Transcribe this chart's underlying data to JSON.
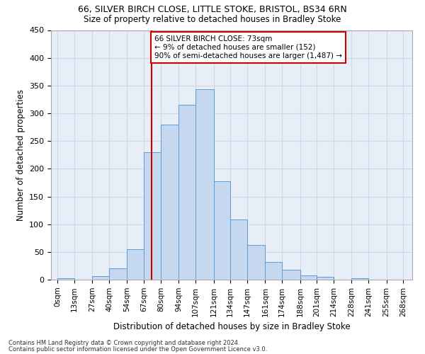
{
  "title1": "66, SILVER BIRCH CLOSE, LITTLE STOKE, BRISTOL, BS34 6RN",
  "title2": "Size of property relative to detached houses in Bradley Stoke",
  "xlabel": "Distribution of detached houses by size in Bradley Stoke",
  "ylabel": "Number of detached properties",
  "bar_heights": [
    3,
    0,
    7,
    21,
    55,
    230,
    280,
    315,
    343,
    178,
    108,
    63,
    32,
    18,
    8,
    5,
    0,
    3
  ],
  "bar_color": "#c5d8f0",
  "bar_edge_color": "#5b9bd5",
  "grid_color": "#d0d8e8",
  "background_color": "#e8eef8",
  "property_size": 73,
  "annotation_text": "66 SILVER BIRCH CLOSE: 73sqm\n← 9% of detached houses are smaller (152)\n90% of semi-detached houses are larger (1,487) →",
  "annotation_box_color": "#ffffff",
  "annotation_border_color": "#cc0000",
  "vline_color": "#cc0000",
  "footnote1": "Contains HM Land Registry data © Crown copyright and database right 2024.",
  "footnote2": "Contains public sector information licensed under the Open Government Licence v3.0.",
  "bin_edges": [
    0,
    13,
    27,
    40,
    54,
    67,
    80,
    94,
    107,
    121,
    134,
    147,
    161,
    174,
    188,
    201,
    214,
    228,
    241
  ],
  "xtick_labels": [
    "0sqm",
    "13sqm",
    "27sqm",
    "40sqm",
    "54sqm",
    "67sqm",
    "80sqm",
    "94sqm",
    "107sqm",
    "121sqm",
    "134sqm",
    "147sqm",
    "161sqm",
    "174sqm",
    "188sqm",
    "201sqm",
    "214sqm",
    "228sqm",
    "241sqm",
    "255sqm",
    "268sqm"
  ],
  "xtick_positions": [
    0,
    13,
    27,
    40,
    54,
    67,
    80,
    94,
    107,
    121,
    134,
    147,
    161,
    174,
    188,
    201,
    214,
    228,
    241,
    255,
    268
  ],
  "ylim": [
    0,
    450
  ],
  "yticks": [
    0,
    50,
    100,
    150,
    200,
    250,
    300,
    350,
    400,
    450
  ],
  "xlim_min": -5,
  "xlim_max": 275
}
